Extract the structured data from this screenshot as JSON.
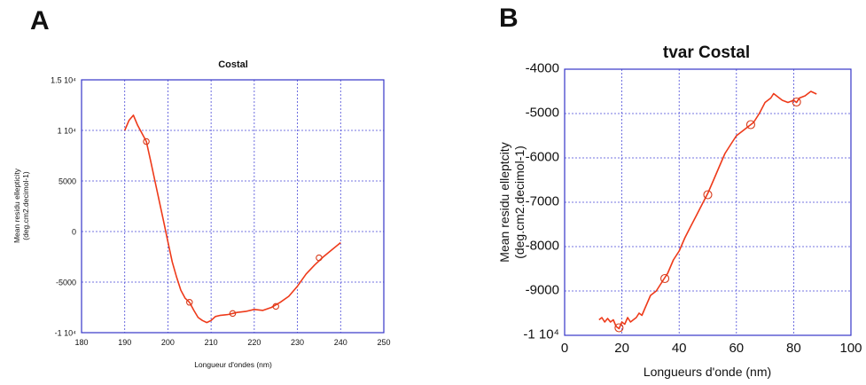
{
  "panel_labels": [
    "A",
    "B"
  ],
  "colors": {
    "line": "#ee3a1a",
    "frame": "#3535c8",
    "grid": "#4a4ad8"
  },
  "chart_data": [
    {
      "type": "line",
      "title": "Costal",
      "xlabel": "Longueur d'ondes (nm)",
      "ylabel_lines": [
        "Mean residu ellepticity",
        "(deg.cm2.decimol-1)"
      ],
      "xlim": [
        180,
        250
      ],
      "ylim": [
        -10000,
        15000
      ],
      "x_ticks": [
        180,
        190,
        200,
        210,
        220,
        230,
        240,
        250
      ],
      "x_tick_labels": [
        "180",
        "190",
        "200",
        "210",
        "220",
        "230",
        "240",
        "250"
      ],
      "y_ticks": [
        -10000,
        -5000,
        0,
        5000,
        10000,
        15000
      ],
      "y_tick_labels": [
        "-1 10⁴",
        "-5000",
        "0",
        "5000",
        "1 10⁴",
        "1.5 10⁴"
      ],
      "grid": true,
      "series": [
        {
          "x": [
            190,
            191,
            192,
            193,
            194,
            195,
            196,
            197,
            198,
            199,
            200,
            201,
            202,
            203,
            204,
            205,
            206,
            207,
            208,
            209,
            210,
            211,
            212,
            214,
            216,
            218,
            220,
            222,
            224,
            226,
            228,
            230,
            232,
            234,
            236,
            238,
            240
          ],
          "y": [
            10000,
            11000,
            11500,
            10500,
            9700,
            8900,
            7000,
            5000,
            3000,
            1000,
            -1000,
            -3000,
            -4500,
            -5800,
            -6600,
            -7000,
            -7800,
            -8500,
            -8800,
            -9000,
            -8800,
            -8400,
            -8300,
            -8200,
            -8000,
            -7900,
            -7700,
            -7800,
            -7500,
            -7000,
            -6400,
            -5400,
            -4200,
            -3300,
            -2500,
            -1800,
            -1100
          ],
          "markers_x": [
            195,
            205,
            215,
            225,
            235
          ],
          "markers_y": [
            8900,
            -7000,
            -8100,
            -7400,
            -2600
          ]
        }
      ]
    },
    {
      "type": "line",
      "title": "tvar  Costal",
      "xlabel": "Longueurs d'onde (nm)",
      "ylabel_lines": [
        "Mean residu elleptcity",
        "(deg.cm2.decimol-1)"
      ],
      "xlim": [
        0,
        100
      ],
      "ylim": [
        -10000,
        -4000
      ],
      "x_ticks": [
        0,
        20,
        40,
        60,
        80,
        100
      ],
      "x_tick_labels": [
        "0",
        "20",
        "40",
        "60",
        "80",
        "100"
      ],
      "y_ticks": [
        -10000,
        -9000,
        -8000,
        -7000,
        -6000,
        -5000,
        -4000
      ],
      "y_tick_labels": [
        "-1 10⁴",
        "-9000",
        "-8000",
        "-7000",
        "-6000",
        "-5000",
        "-4000"
      ],
      "grid": true,
      "series": [
        {
          "x": [
            12,
            13,
            14,
            15,
            16,
            17,
            18,
            19,
            20,
            21,
            22,
            23,
            24,
            25,
            26,
            27,
            28,
            30,
            32,
            34,
            35,
            36,
            38,
            40,
            42,
            44,
            46,
            48,
            50,
            52,
            54,
            56,
            58,
            60,
            62,
            64,
            65,
            66,
            68,
            70,
            72,
            73,
            74,
            76,
            78,
            80,
            81,
            82,
            84,
            85,
            86,
            88
          ],
          "y": [
            -9650,
            -9600,
            -9700,
            -9620,
            -9700,
            -9650,
            -9800,
            -9850,
            -9700,
            -9750,
            -9600,
            -9700,
            -9650,
            -9600,
            -9500,
            -9550,
            -9400,
            -9100,
            -9000,
            -8800,
            -8700,
            -8600,
            -8300,
            -8100,
            -7800,
            -7550,
            -7300,
            -7050,
            -6800,
            -6500,
            -6200,
            -5900,
            -5700,
            -5500,
            -5400,
            -5300,
            -5250,
            -5200,
            -5000,
            -4750,
            -4650,
            -4550,
            -4600,
            -4700,
            -4750,
            -4700,
            -4750,
            -4650,
            -4600,
            -4550,
            -4500,
            -4560
          ],
          "markers_x": [
            19,
            35,
            50,
            65,
            81
          ],
          "markers_y": [
            -9830,
            -8720,
            -6830,
            -5250,
            -4740
          ]
        }
      ]
    }
  ]
}
